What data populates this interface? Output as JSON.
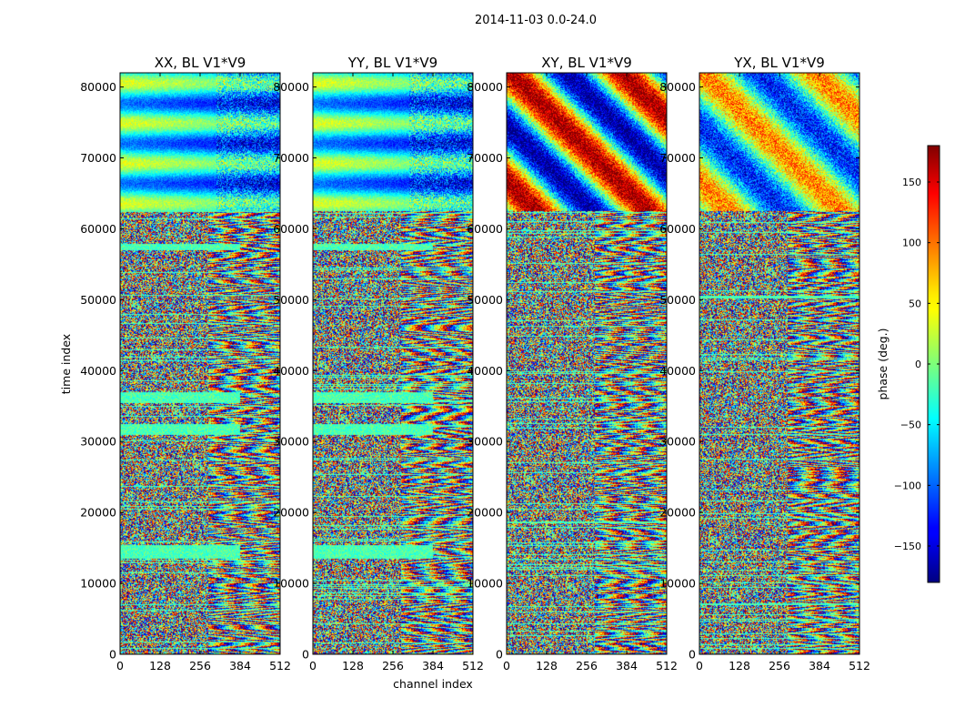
{
  "chart_data": {
    "type": "heatmap",
    "suptitle": "2014-11-03 0.0-24.0",
    "colormap": "jet",
    "panels": [
      {
        "title": "XX, BL V1*V9"
      },
      {
        "title": "YY, BL V1*V9"
      },
      {
        "title": "XY, BL V1*V9"
      },
      {
        "title": "YX, BL V1*V9"
      }
    ],
    "xlabel": "channel index",
    "ylabel": "time index",
    "xlim": [
      0,
      512
    ],
    "ylim": [
      0,
      82000
    ],
    "xticks": [
      0,
      128,
      256,
      384,
      512
    ],
    "yticks": [
      0,
      10000,
      20000,
      30000,
      40000,
      50000,
      60000,
      70000,
      80000
    ],
    "colorbar": {
      "label": "phase (deg.)",
      "range": [
        -180,
        180
      ],
      "ticks": [
        -150,
        -100,
        -50,
        0,
        50,
        100,
        150
      ],
      "tick_labels": [
        "−150",
        "−100",
        "−50",
        "0",
        "50",
        "100",
        "150"
      ]
    }
  }
}
